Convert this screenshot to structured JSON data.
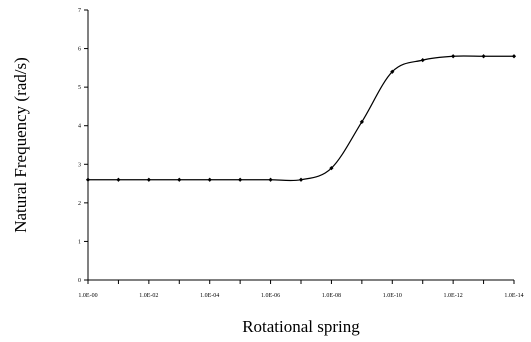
{
  "chart_data": {
    "type": "line",
    "title": "",
    "xlabel": "Rotational spring",
    "ylabel": "Natural Frequency (rad/s)",
    "x_tick_labels": [
      "1.0E-00",
      "1.0E-02",
      "1.0E-04",
      "1.0E-06",
      "1.0E-08",
      "1.0E-10",
      "1.0E-12",
      "1.0E-14"
    ],
    "y_tick_labels": [
      "0",
      "1",
      "2",
      "3",
      "4",
      "5",
      "6",
      "7"
    ],
    "ylim": [
      0,
      7
    ],
    "xlim": [
      0,
      14
    ],
    "x_scale": "log-exponent",
    "grid": false,
    "legend": "none",
    "line_color": "#000000",
    "series": [
      {
        "x": [
          0,
          1,
          2,
          3,
          4,
          5,
          6,
          7,
          8,
          9,
          10,
          11,
          12,
          13,
          14
        ],
        "values": [
          2.6,
          2.6,
          2.6,
          2.6,
          2.6,
          2.6,
          2.6,
          2.6,
          2.9,
          4.1,
          5.4,
          5.7,
          5.8,
          5.8,
          5.8
        ]
      }
    ]
  }
}
